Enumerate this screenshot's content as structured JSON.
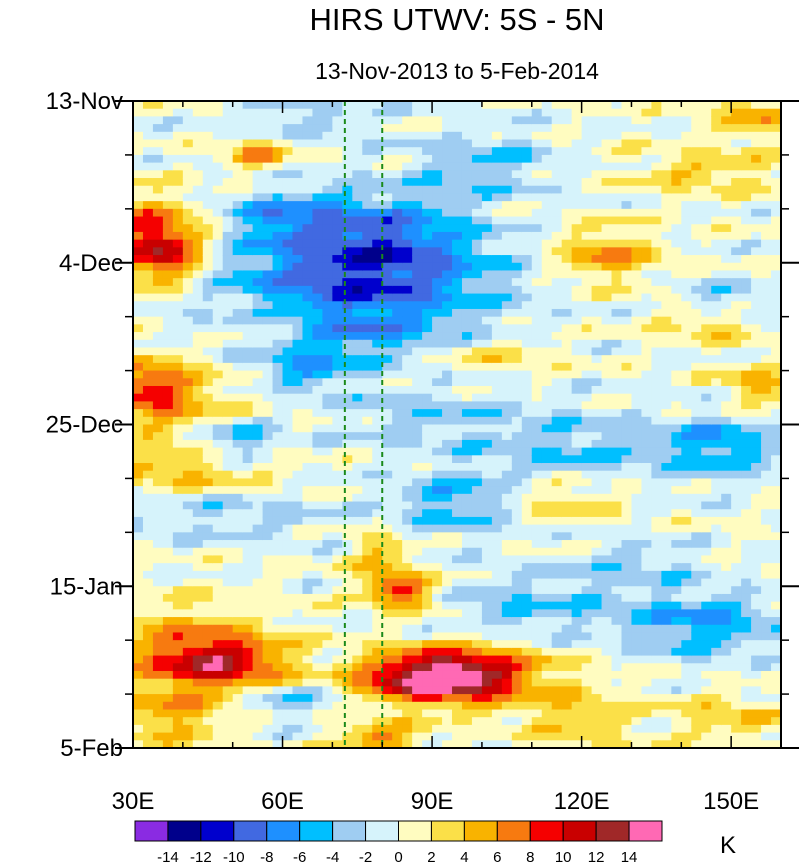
{
  "chart_data": {
    "type": "heatmap",
    "title": "HIRS UTWV: 5S - 5N",
    "subtitle": "13-Nov-2013 to 5-Feb-2014",
    "xlim": [
      30,
      160
    ],
    "x_ticks": [
      {
        "value": 30,
        "label": "30E"
      },
      {
        "value": 60,
        "label": "60E"
      },
      {
        "value": 90,
        "label": "90E"
      },
      {
        "value": 120,
        "label": "120E"
      },
      {
        "value": 150,
        "label": "150E"
      }
    ],
    "time_range_days": [
      0,
      84
    ],
    "y_ticks": [
      {
        "day": 0,
        "label": "13-Nov"
      },
      {
        "day": 21,
        "label": "4-Dec"
      },
      {
        "day": 42,
        "label": "25-Dec"
      },
      {
        "day": 63,
        "label": "15-Jan"
      },
      {
        "day": 84,
        "label": "5-Feb"
      }
    ],
    "reference_lines_x": [
      72.5,
      80
    ],
    "reference_line_color": "#1a8a1a",
    "colorbar": {
      "unit": "K",
      "levels": [
        -14,
        -12,
        -10,
        -8,
        -6,
        -4,
        -2,
        0,
        2,
        4,
        6,
        8,
        10,
        12,
        14
      ],
      "label_texts": [
        "-14",
        "-12",
        "-10",
        "-8",
        "-6",
        "-4",
        "-2",
        "0",
        "2",
        "4",
        "6",
        "8",
        "10",
        "12",
        "14"
      ],
      "colors": [
        "#8a2be2",
        "#00008b",
        "#0000cd",
        "#4169e1",
        "#1e90ff",
        "#00bfff",
        "#9fcdf2",
        "#d6f3fb",
        "#fffcc0",
        "#fbe048",
        "#f9b300",
        "#f77a10",
        "#f50000",
        "#c90000",
        "#a02828",
        "#ff69b4"
      ]
    },
    "anomaly_features": [
      {
        "lon": 36,
        "day": 20,
        "value": 10,
        "sx": 6,
        "sy": 3
      },
      {
        "lon": 33,
        "day": 37,
        "value": 7,
        "sx": 6,
        "sy": 2.5
      },
      {
        "lon": 33,
        "day": 16,
        "value": 5,
        "sx": 7,
        "sy": 3
      },
      {
        "lon": 40,
        "day": 40,
        "value": 4,
        "sx": 10,
        "sy": 4
      },
      {
        "lon": 40,
        "day": 48,
        "value": 4,
        "sx": 12,
        "sy": 2
      },
      {
        "lon": 55,
        "day": 7,
        "value": 6,
        "sx": 4,
        "sy": 1.5
      },
      {
        "lon": 75,
        "day": 24,
        "value": -9,
        "sx": 20,
        "sy": 5
      },
      {
        "lon": 80,
        "day": 17,
        "value": -6,
        "sx": 12,
        "sy": 4
      },
      {
        "lon": 60,
        "day": 15,
        "value": -5,
        "sx": 8,
        "sy": 2.5
      },
      {
        "lon": 65,
        "day": 35,
        "value": -5,
        "sx": 7,
        "sy": 2
      },
      {
        "lon": 75,
        "day": 31,
        "value": -3,
        "sx": 15,
        "sy": 2
      },
      {
        "lon": 50,
        "day": 44,
        "value": -6,
        "sx": 6,
        "sy": 2
      },
      {
        "lon": 95,
        "day": 52,
        "value": -5,
        "sx": 10,
        "sy": 3
      },
      {
        "lon": 90,
        "day": 41,
        "value": -3,
        "sx": 15,
        "sy": 3
      },
      {
        "lon": 120,
        "day": 45,
        "value": -4,
        "sx": 12,
        "sy": 3
      },
      {
        "lon": 148,
        "day": 45,
        "value": -6,
        "sx": 8,
        "sy": 3
      },
      {
        "lon": 110,
        "day": 66,
        "value": -4,
        "sx": 15,
        "sy": 3
      },
      {
        "lon": 145,
        "day": 68,
        "value": -6,
        "sx": 10,
        "sy": 3
      },
      {
        "lon": 100,
        "day": 8,
        "value": -4,
        "sx": 10,
        "sy": 3
      },
      {
        "lon": 150,
        "day": 26,
        "value": -3,
        "sx": 8,
        "sy": 2
      },
      {
        "lon": 125,
        "day": 20,
        "value": 6,
        "sx": 7,
        "sy": 2.5
      },
      {
        "lon": 145,
        "day": 9,
        "value": 4,
        "sx": 10,
        "sy": 2
      },
      {
        "lon": 155,
        "day": 2,
        "value": 5,
        "sx": 6,
        "sy": 2
      },
      {
        "lon": 145,
        "day": 29,
        "value": 4,
        "sx": 8,
        "sy": 1.5
      },
      {
        "lon": 155,
        "day": 37,
        "value": 5,
        "sx": 5,
        "sy": 2
      },
      {
        "lon": 115,
        "day": 52,
        "value": 4,
        "sx": 8,
        "sy": 2
      },
      {
        "lon": 80,
        "day": 60,
        "value": 5,
        "sx": 4,
        "sy": 3
      },
      {
        "lon": 85,
        "day": 64,
        "value": 8,
        "sx": 5,
        "sy": 1.5
      },
      {
        "lon": 90,
        "day": 75,
        "value": 12,
        "sx": 10,
        "sy": 2
      },
      {
        "lon": 97,
        "day": 74,
        "value": 8,
        "sx": 12,
        "sy": 3
      },
      {
        "lon": 48,
        "day": 73,
        "value": 9,
        "sx": 9,
        "sy": 2.5
      },
      {
        "lon": 40,
        "day": 71,
        "value": 5,
        "sx": 12,
        "sy": 4
      },
      {
        "lon": 38,
        "day": 80,
        "value": 5,
        "sx": 8,
        "sy": 2.5
      },
      {
        "lon": 80,
        "day": 83,
        "value": 7,
        "sx": 6,
        "sy": 1.5
      },
      {
        "lon": 120,
        "day": 80,
        "value": 4,
        "sx": 8,
        "sy": 2.5
      },
      {
        "lon": 150,
        "day": 80,
        "value": 4,
        "sx": 8,
        "sy": 2
      },
      {
        "lon": 60,
        "day": 78,
        "value": -4,
        "sx": 8,
        "sy": 1.5
      },
      {
        "lon": 50,
        "day": 54,
        "value": -3,
        "sx": 15,
        "sy": 2
      },
      {
        "lon": 65,
        "day": 2,
        "value": -3,
        "sx": 10,
        "sy": 2
      },
      {
        "lon": 130,
        "day": 60,
        "value": -3,
        "sx": 10,
        "sy": 2
      },
      {
        "lon": 100,
        "day": 33,
        "value": 3,
        "sx": 10,
        "sy": 2
      },
      {
        "lon": 58,
        "day": 29,
        "value": 3,
        "sx": 8,
        "sy": 2
      }
    ]
  }
}
